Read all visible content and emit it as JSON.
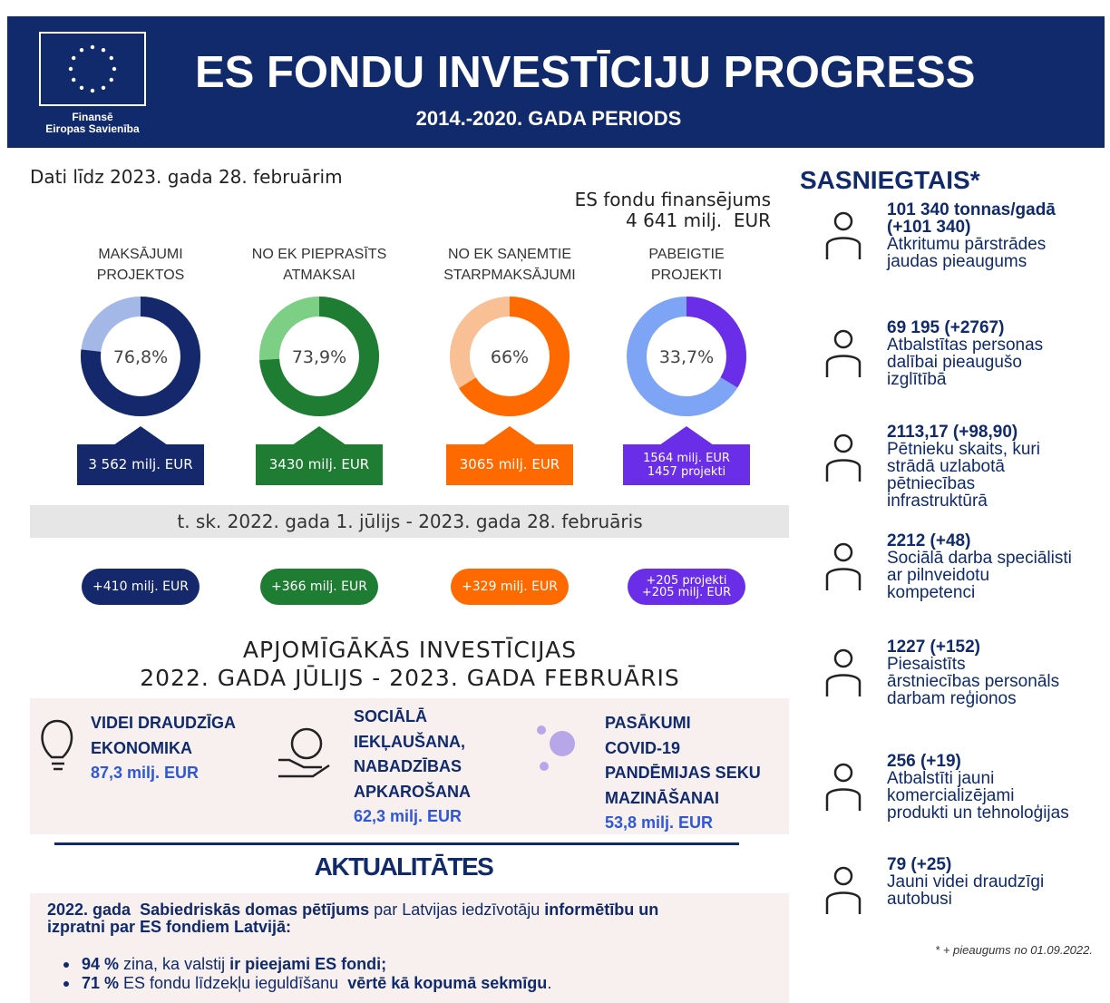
{
  "header": {
    "title": "ES FONDU INVESTĪCIJU PROGRESS",
    "subtitle": "2014.-2020. GADA PERIODS",
    "funded_by": [
      "Finansē",
      "Eiropas Savienība"
    ]
  },
  "date_note": "Dati līdz 2023. gada 28. februārim",
  "total": [
    "ES fondu finansējums",
    "4 641 milj.  EUR"
  ],
  "indicators": [
    {
      "label": [
        "MAKSĀJUMI",
        "PROJEKTOS"
      ],
      "value": 76.8,
      "value_label": "76,8%",
      "color": "#14286b",
      "track_color": "#a3b8e6",
      "amount": [
        "3 562 milj. EUR"
      ],
      "change": [
        "+410 milj. EUR"
      ]
    },
    {
      "label": [
        "NO EK PIEPRASĪTS",
        "ATMAKSAI"
      ],
      "value": 73.9,
      "value_label": "73,9%",
      "color": "#1e7d32",
      "track_color": "#7ccf85",
      "amount": [
        "3430 milj. EUR"
      ],
      "change": [
        "+366 milj. EUR"
      ]
    },
    {
      "label": [
        "NO EK SAŅEMTIE",
        "STARPMAKSĀJUMI"
      ],
      "value": 66,
      "value_label": "66%",
      "color": "#ff6a00",
      "track_color": "#f9bf95",
      "amount": [
        "3065 milj. EUR"
      ],
      "change": [
        "+329 milj. EUR"
      ]
    },
    {
      "label": [
        "PABEIGTIE",
        "PROJEKTI"
      ],
      "value": 33.7,
      "value_label": "33,7%",
      "color": "#6a2ee8",
      "track_color": "#7ea4f5",
      "amount": [
        "1564 milj. EUR",
        "1457 projekti"
      ],
      "change": [
        "+205 projekti",
        "+205 milj. EUR"
      ]
    }
  ],
  "period_note": "t. sk. 2022. gada 1. jūlijs - 2023. gada 28. februāris",
  "top_investments": {
    "title": [
      "APJOMĪGĀKĀS INVESTĪCIJAS",
      "2022. GADA JŪLIJS - 2023. GADA FEBRUĀRIS"
    ],
    "items": [
      {
        "name": [
          "VIDEI DRAUDZĪGA",
          "EKONOMIKA"
        ],
        "amount": "87,3 milj. EUR"
      },
      {
        "name": [
          "SOCIĀLĀ",
          "IEKĻAUŠANA,",
          "NABADZĪBAS",
          "APKAROŠANA"
        ],
        "amount": "62,3 milj. EUR"
      },
      {
        "name": [
          "PASĀKUMI",
          "COVID-19",
          "PANDĒMIJAS SEKU",
          "MAZINĀŠANAI"
        ],
        "amount": "53,8 milj. EUR"
      }
    ]
  },
  "news": {
    "title": "AKTUALITĀTES",
    "intro": [
      [
        {
          "text": "2022. gada  ",
          "bold": true
        },
        {
          "text": "Sabiedriskās domas pētījums",
          "bold": true
        },
        {
          "text": " par Latvijas iedzīvotāju ",
          "bold": false
        },
        {
          "text": "informētību un",
          "bold": true
        }
      ],
      [
        {
          "text": "izpratni par ES fondiem Latvijā:",
          "bold": true
        }
      ]
    ],
    "bullets": [
      [
        {
          "text": "94 %",
          "bold": true
        },
        {
          "text": " zina, ka valstij ",
          "bold": false
        },
        {
          "text": "ir pieejami ES fondi;",
          "bold": true
        }
      ],
      [
        {
          "text": "71 %",
          "bold": true
        },
        {
          "text": " ES fondu līdzekļu ieguldīšanu  ",
          "bold": false
        },
        {
          "text": "vērtē kā kopumā sekmīgu",
          "bold": true
        },
        {
          "text": ".",
          "bold": false
        }
      ]
    ]
  },
  "achievements": {
    "title": "SASNIEGTAIS*",
    "items": [
      {
        "headline": [
          "101 340 tonnas/gadā",
          "(+101 340)"
        ],
        "text": [
          "Atkritumu pārstrādes",
          "jaudas pieaugums"
        ]
      },
      {
        "headline": [
          "69 195 (+2767)"
        ],
        "text": [
          "Atbalstītas personas",
          "dalībai pieaugušo",
          "izglītībā"
        ]
      },
      {
        "headline": [
          "2113,17 (+98,90)"
        ],
        "text": [
          "Pētnieku skaits, kuri",
          "strādā uzlabotā",
          "pētniecības",
          "infrastruktūrā"
        ]
      },
      {
        "headline": [
          "2212 (+48)"
        ],
        "text": [
          "Sociālā darba speciālisti",
          "ar pilnveidotu",
          "kompetenci"
        ]
      },
      {
        "headline": [
          "1227 (+152)"
        ],
        "text": [
          "Piesaistīts",
          "ārstniecības personāls",
          "darbam reģionos"
        ]
      },
      {
        "headline": [
          "256 (+19)"
        ],
        "text": [
          "Atbalstīti jauni",
          "komercializējami",
          "produkti un tehnoloģijas"
        ]
      },
      {
        "headline": [
          "79 (+25)"
        ],
        "text": [
          "Jauni videi draudzīgi",
          "autobusi"
        ]
      }
    ],
    "footnote": "* + pieaugums no 01.09.2022."
  }
}
